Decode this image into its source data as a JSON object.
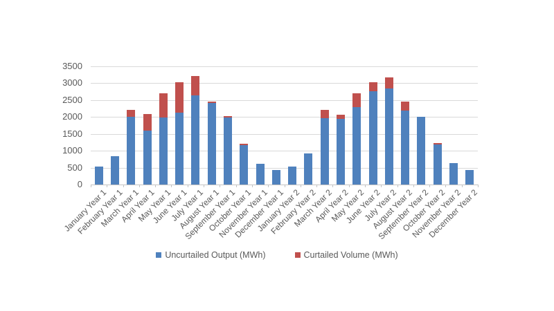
{
  "page": {
    "background_color": "#ffffff",
    "title": ""
  },
  "chart_data": {
    "type": "bar",
    "stacked": true,
    "title": "",
    "xlabel": "",
    "ylabel": "",
    "categories": [
      "January Year 1",
      "February Year 1",
      "March Year 1",
      "April Year 1",
      "May Year 1",
      "June Year 1",
      "July Year 1",
      "August Year 1",
      "September Year 1",
      "October Year 1",
      "November Year 1",
      "December Year 1",
      "January Year 2",
      "February Year 2",
      "March Year 2",
      "April Year 2",
      "May Year 2",
      "June Year 2",
      "July Year 2",
      "August Year 2",
      "September Year 2",
      "October Year 2",
      "November Year 2",
      "December Year 2"
    ],
    "series": [
      {
        "name": "Uncurtailed Output (MWh)",
        "color": "#4F81BD",
        "values": [
          530,
          835,
          2010,
          1595,
          1990,
          2120,
          2650,
          2410,
          1980,
          1175,
          620,
          425,
          535,
          925,
          1975,
          1950,
          2300,
          2755,
          2845,
          2195,
          2015,
          1180,
          630,
          425
        ]
      },
      {
        "name": "Curtailed Volume (MWh)",
        "color": "#C0504D",
        "values": [
          0,
          0,
          210,
          495,
          710,
          915,
          560,
          55,
          55,
          40,
          0,
          0,
          0,
          0,
          230,
          120,
          410,
          275,
          335,
          255,
          0,
          40,
          0,
          0
        ]
      }
    ],
    "ylim": [
      0,
      3500
    ],
    "yticks": [
      0,
      500,
      1000,
      1500,
      2000,
      2500,
      3000,
      3500
    ],
    "grid": true,
    "legend_position": "bottom",
    "colors": {
      "gridline": "#d9d9d9",
      "axis_line": "#c3c3c3",
      "tick_label": "#595959"
    }
  }
}
